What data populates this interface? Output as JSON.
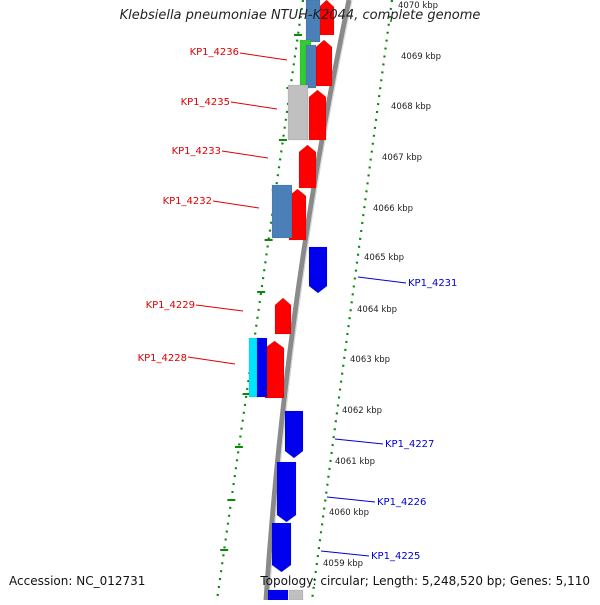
{
  "title": "Klebsiella pneumoniae NTUH-K2044, complete genome",
  "accession": "Accession: NC_012731",
  "topology": "Topology: circular; Length: 5,248,520 bp; Genes: 5,110",
  "colors": {
    "left_label": "#e00000",
    "right_label": "#0000d0",
    "forward_gene": "#ff0000",
    "reverse_gene": "#0000ee",
    "steelblue_gene": "#4a7fb8",
    "gray_gene": "#c0c0c0",
    "green_gene": "#33cc33",
    "cyan_gene": "#00e5ff",
    "backbone": "#8a8a8a",
    "tick": "#0a8a0a"
  },
  "scale_labels": [
    "4070 kbp",
    "4069 kbp",
    "4068 kbp",
    "4067 kbp",
    "4066 kbp",
    "4065 kbp",
    "4064 kbp",
    "4063 kbp",
    "4062 kbp",
    "4061 kbp",
    "4060 kbp",
    "4059 kbp"
  ],
  "left_labels": [
    "KP1_4236",
    "KP1_4235",
    "KP1_4233",
    "KP1_4232",
    "KP1_4229",
    "KP1_4228"
  ],
  "right_labels": [
    "KP1_4231",
    "KP1_4227",
    "KP1_4226",
    "KP1_4225"
  ]
}
